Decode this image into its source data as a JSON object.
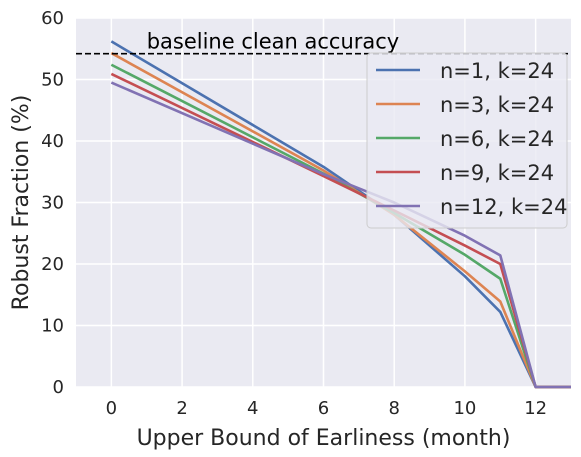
{
  "chart_data": {
    "type": "line",
    "xlabel": "Upper Bound of Earliness (month)",
    "ylabel": "Robust Fraction (%)",
    "xlim": [
      -1,
      13
    ],
    "ylim": [
      0,
      60
    ],
    "xticks": [
      0,
      2,
      4,
      6,
      8,
      10,
      12
    ],
    "yticks": [
      0,
      10,
      20,
      30,
      40,
      50,
      60
    ],
    "grid": true,
    "legend_position": "top-right",
    "x": [
      0,
      6,
      8,
      10,
      11,
      12,
      13
    ],
    "series": [
      {
        "name": "n=1, k=24",
        "color": "#4c72b0",
        "values": [
          56.2,
          35.8,
          28.0,
          18.0,
          12.2,
          0,
          0
        ]
      },
      {
        "name": "n=3, k=24",
        "color": "#dd8452",
        "values": [
          54.3,
          35.2,
          28.0,
          18.8,
          13.9,
          0,
          0
        ]
      },
      {
        "name": "n=6, k=24",
        "color": "#55a868",
        "values": [
          52.4,
          34.7,
          28.3,
          21.5,
          17.6,
          0,
          0
        ]
      },
      {
        "name": "n=9, k=24",
        "color": "#c44e52",
        "values": [
          50.9,
          34.3,
          28.7,
          23.0,
          20.0,
          0,
          0
        ]
      },
      {
        "name": "n=12, k=24",
        "color": "#8172b3",
        "values": [
          49.5,
          34.6,
          30.0,
          24.6,
          21.4,
          0,
          0
        ]
      }
    ],
    "baseline": {
      "label": "baseline clean accuracy",
      "y": 54.2
    }
  }
}
